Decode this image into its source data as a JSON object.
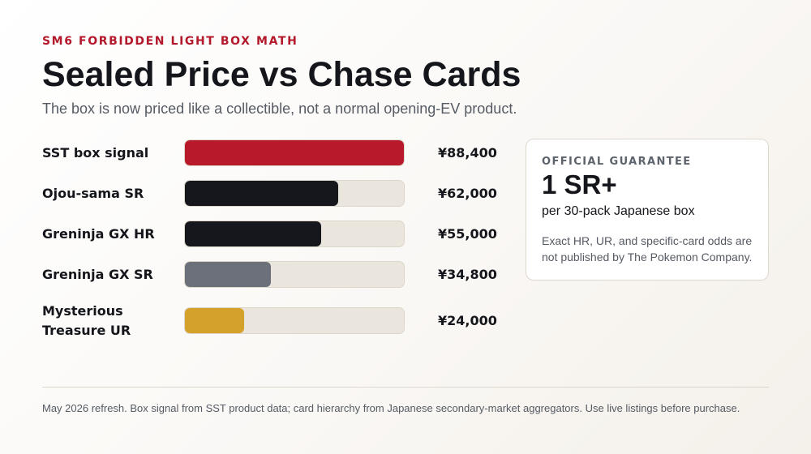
{
  "header": {
    "eyebrow": "SM6 FORBIDDEN LIGHT BOX MATH",
    "title": "Sealed Price vs Chase Cards",
    "subtitle": "The box is now priced like a collectible, not a normal opening-EV product."
  },
  "chart_data": {
    "type": "bar",
    "orientation": "horizontal",
    "title": "",
    "xlabel": "",
    "ylabel": "",
    "xlim": [
      0,
      88400
    ],
    "grid": false,
    "categories": [
      "SST box signal",
      "Ojou-sama SR",
      "Greninja GX HR",
      "Greninja GX SR",
      "Mysterious Treasure UR"
    ],
    "values": [
      88400,
      62000,
      55000,
      34800,
      24000
    ],
    "value_labels": [
      "¥88,400",
      "¥62,000",
      "¥55,000",
      "¥34,800",
      "¥24,000"
    ],
    "bar_colors": [
      "#b8192b",
      "#16171c",
      "#16171c",
      "#6b707a",
      "#d4a22a"
    ],
    "track_color": "#ebe6dd"
  },
  "card": {
    "eyebrow": "OFFICIAL GUARANTEE",
    "value": "1 SR+",
    "subtitle": "per 30-pack Japanese box",
    "note": "Exact HR, UR, and specific-card odds are not published by The Pokemon Company."
  },
  "footer": {
    "text": "May 2026 refresh. Box signal from SST product data; card hierarchy from Japanese secondary-market aggregators. Use live listings before purchase."
  }
}
